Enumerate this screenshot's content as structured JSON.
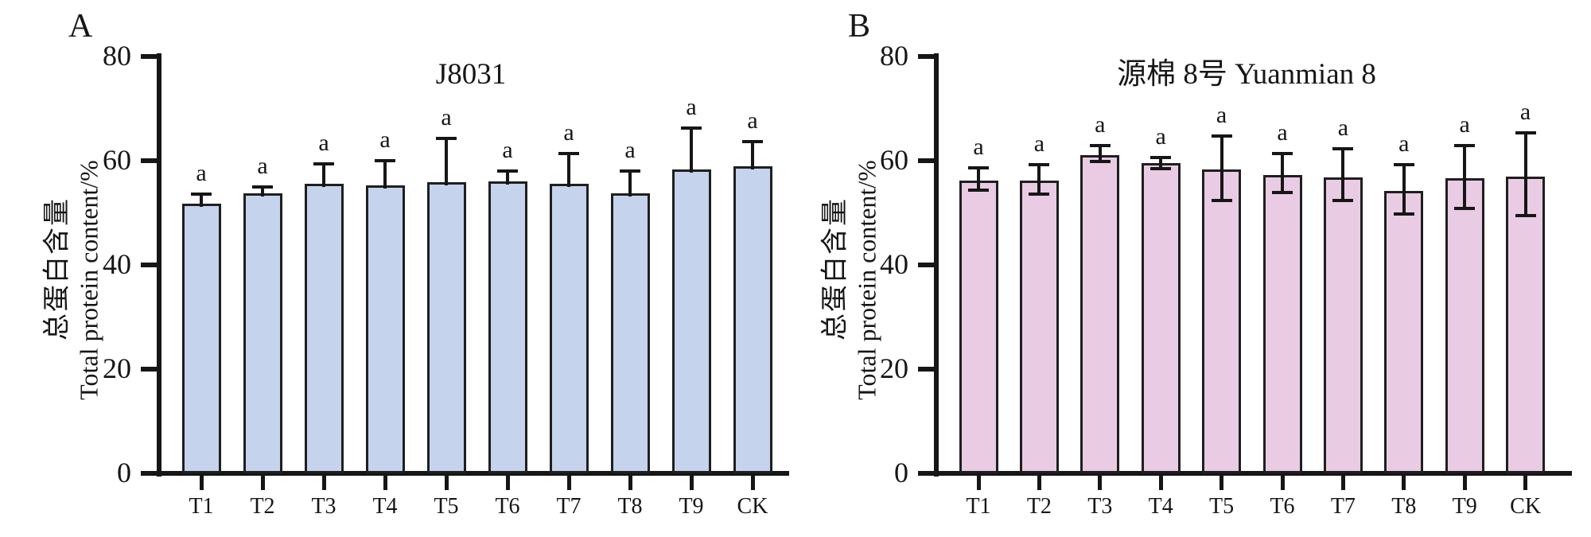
{
  "figure": {
    "panels": [
      {
        "panel_label": "A",
        "title": "J8031",
        "y_axis_label_zh": "总蛋白含量",
        "y_axis_label_en": "Total protein content/%",
        "bar_fill": "#c5d3ec",
        "bar_border": "#1f1f1f",
        "axis_color": "#161616"
      },
      {
        "panel_label": "B",
        "title": "源棉 8号 Yuanmian 8",
        "y_axis_label_zh": "总蛋白含量",
        "y_axis_label_en": "Total protein content/%",
        "bar_fill": "#e9cce3",
        "bar_border": "#1f1f1f",
        "axis_color": "#161616"
      }
    ]
  },
  "chart_data": [
    {
      "type": "bar",
      "panel": "A",
      "title": "J8031",
      "categories": [
        "T1",
        "T2",
        "T3",
        "T4",
        "T5",
        "T6",
        "T7",
        "T8",
        "T9",
        "CK"
      ],
      "values": [
        51.7,
        53.8,
        55.5,
        55.2,
        55.9,
        56.1,
        55.5,
        53.8,
        58.3,
        59.0
      ],
      "errors_up": [
        1.9,
        1.2,
        3.9,
        4.8,
        8.4,
        1.9,
        5.9,
        4.2,
        7.9,
        4.7
      ],
      "errors_down": null,
      "sig_labels": [
        "a",
        "a",
        "a",
        "a",
        "a",
        "a",
        "a",
        "a",
        "a",
        "a"
      ],
      "xlabel": "",
      "ylabel": "总蛋白含量 Total protein content/%",
      "ylim": [
        0,
        80
      ],
      "yticks": [
        0,
        20,
        40,
        60,
        80
      ],
      "grid": false,
      "legend_position": "none",
      "bar_color": "#c5d3ec"
    },
    {
      "type": "bar",
      "panel": "B",
      "title": "源棉 8号 Yuanmian 8",
      "categories": [
        "T1",
        "T2",
        "T3",
        "T4",
        "T5",
        "T6",
        "T7",
        "T8",
        "T9",
        "CK"
      ],
      "values": [
        56.2,
        56.2,
        61.1,
        59.5,
        58.3,
        57.3,
        56.8,
        54.2,
        56.7,
        57.0
      ],
      "errors_up": [
        2.4,
        3.0,
        1.8,
        1.1,
        6.4,
        4.1,
        5.5,
        5.0,
        6.2,
        8.3
      ],
      "errors_down": [
        1.8,
        2.6,
        1.2,
        1.0,
        6.0,
        3.4,
        4.5,
        4.5,
        5.8,
        7.6
      ],
      "sig_labels": [
        "a",
        "a",
        "a",
        "a",
        "a",
        "a",
        "a",
        "a",
        "a",
        "a"
      ],
      "xlabel": "",
      "ylabel": "总蛋白含量 Total protein content/%",
      "ylim": [
        0,
        80
      ],
      "yticks": [
        0,
        20,
        40,
        60,
        80
      ],
      "grid": false,
      "legend_position": "none",
      "bar_color": "#e9cce3"
    }
  ]
}
